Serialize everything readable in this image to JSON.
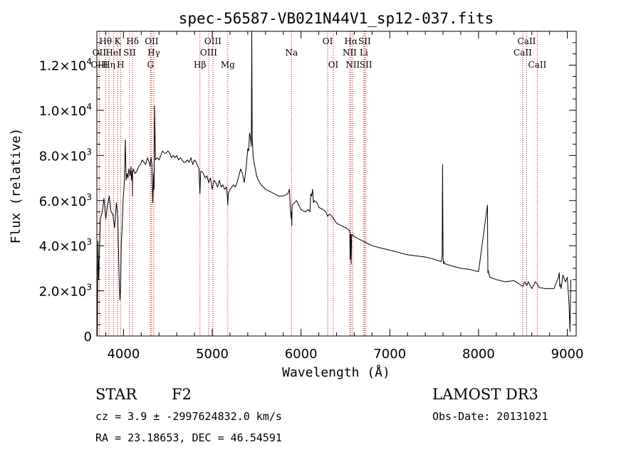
{
  "chart_data": {
    "type": "line",
    "title": "spec-56587-VB021N44V1_sp12-037.fits",
    "xlabel": "Wavelength (Å)",
    "ylabel": "Flux (relative)",
    "xlim": [
      3700,
      9100
    ],
    "ylim": [
      0,
      13500
    ],
    "x_ticks": [
      4000,
      5000,
      6000,
      7000,
      8000,
      9000
    ],
    "x_tick_labels": [
      "4000",
      "5000",
      "6000",
      "7000",
      "8000",
      "9000"
    ],
    "y_ticks": [
      0,
      2000,
      4000,
      6000,
      8000,
      10000,
      12000
    ],
    "y_tick_mantissa": [
      "0",
      "2.0×10",
      "4.0×10",
      "6.0×10",
      "8.0×10",
      "1.0×10",
      "1.2×10"
    ],
    "y_tick_exponent": [
      "",
      "3",
      "3",
      "3",
      "3",
      "4",
      "4"
    ],
    "grid": false,
    "series": [
      {
        "name": "flux",
        "x": [
          3705,
          3712,
          3720,
          3740,
          3760,
          3780,
          3800,
          3820,
          3840,
          3860,
          3880,
          3900,
          3920,
          3935,
          3950,
          3960,
          3968,
          3975,
          3985,
          3995,
          4010,
          4020,
          4030,
          4040,
          4050,
          4060,
          4075,
          4085,
          4090,
          4100,
          4101,
          4103,
          4110,
          4130,
          4150,
          4170,
          4190,
          4210,
          4230,
          4250,
          4270,
          4290,
          4300,
          4310,
          4320,
          4330,
          4340,
          4345,
          4350,
          4360,
          4380,
          4400,
          4420,
          4440,
          4460,
          4480,
          4500,
          4520,
          4540,
          4560,
          4580,
          4600,
          4620,
          4640,
          4660,
          4680,
          4700,
          4720,
          4740,
          4760,
          4780,
          4800,
          4820,
          4840,
          4850,
          4861,
          4870,
          4880,
          4900,
          4920,
          4940,
          4960,
          4980,
          5000,
          5020,
          5040,
          5060,
          5080,
          5100,
          5120,
          5140,
          5160,
          5170,
          5175,
          5180,
          5200,
          5220,
          5240,
          5260,
          5280,
          5300,
          5320,
          5340,
          5360,
          5380,
          5400,
          5410,
          5420,
          5430,
          5440,
          5445,
          5450,
          5455,
          5460,
          5470,
          5480,
          5490,
          5500,
          5520,
          5550,
          5600,
          5650,
          5700,
          5750,
          5800,
          5850,
          5870,
          5880,
          5890,
          5893,
          5896,
          5900,
          5950,
          6000,
          6050,
          6080,
          6100,
          6110,
          6120,
          6130,
          6140,
          6150,
          6180,
          6200,
          6250,
          6280,
          6300,
          6320,
          6350,
          6400,
          6450,
          6500,
          6540,
          6550,
          6555,
          6560,
          6565,
          6570,
          6600,
          6650,
          6700,
          6750,
          6800,
          6900,
          7000,
          7100,
          7200,
          7300,
          7400,
          7500,
          7580,
          7590,
          7595,
          7600,
          7605,
          7610,
          7620,
          7700,
          7800,
          7900,
          8000,
          8100,
          8105,
          8110,
          8115,
          8120,
          8130,
          8200,
          8300,
          8400,
          8500,
          8520,
          8545,
          8560,
          8600,
          8640,
          8662,
          8680,
          8750,
          8850,
          8900,
          8910,
          8915,
          8920,
          8930,
          8950,
          8980,
          9000,
          9010,
          9020,
          9030,
          9040
        ],
        "values": [
          0,
          4200,
          2500,
          5200,
          5500,
          6100,
          5200,
          5800,
          6200,
          5500,
          5400,
          4800,
          5900,
          5300,
          2600,
          1600,
          2200,
          4100,
          4800,
          6000,
          6800,
          8700,
          6900,
          7200,
          7000,
          7400,
          7100,
          7500,
          6900,
          7300,
          6200,
          7200,
          7400,
          7200,
          7300,
          7500,
          7600,
          7800,
          7700,
          7600,
          7900,
          7700,
          7500,
          7900,
          7600,
          5900,
          7200,
          6500,
          10200,
          7800,
          7900,
          7800,
          8000,
          8200,
          8100,
          8100,
          8200,
          8100,
          7900,
          8000,
          7900,
          8000,
          7800,
          7900,
          7800,
          7700,
          7700,
          7800,
          7700,
          7900,
          7600,
          7800,
          7700,
          7500,
          7400,
          6300,
          7300,
          7300,
          7200,
          7000,
          7100,
          6800,
          7000,
          6500,
          6900,
          6800,
          6600,
          6900,
          6600,
          6700,
          6500,
          6600,
          6200,
          5800,
          6300,
          6500,
          6600,
          6700,
          6600,
          6800,
          7100,
          7400,
          7200,
          6800,
          7400,
          8300,
          8200,
          9000,
          8800,
          8400,
          13500,
          8800,
          8500,
          8000,
          7700,
          7500,
          7300,
          7100,
          6900,
          6700,
          6500,
          6400,
          6300,
          6200,
          6200,
          6300,
          6500,
          5600,
          5200,
          5500,
          4900,
          5800,
          6000,
          5600,
          5500,
          5600,
          5500,
          6300,
          6200,
          6500,
          5900,
          6000,
          5900,
          5700,
          5600,
          5500,
          5300,
          5400,
          5300,
          5000,
          4900,
          4800,
          4700,
          4600,
          3400,
          4500,
          3200,
          4500,
          4400,
          4300,
          4200,
          4100,
          4000,
          3900,
          3800,
          3700,
          3600,
          3550,
          3500,
          3400,
          3300,
          3600,
          7600,
          3400,
          3200,
          3300,
          3200,
          3100,
          3000,
          2950,
          2850,
          5800,
          2800,
          2900,
          2800,
          2700,
          2600,
          2500,
          2400,
          2450,
          2200,
          2400,
          2250,
          2400,
          2100,
          2400,
          2300,
          2150,
          2100,
          2100,
          2600,
          2800,
          2200,
          2300,
          2100,
          2700,
          2400,
          2600,
          2000,
          1400,
          200,
          2500
        ]
      }
    ],
    "annotations": [
      {
        "label": "Hθ",
        "x": 3798,
        "row": 1
      },
      {
        "label": "OII",
        "x": 3727,
        "row": 2
      },
      {
        "label": "OIII",
        "x": 3727,
        "row": 3
      },
      {
        "label": "HeI",
        "x": 3889,
        "row": 2
      },
      {
        "label": "Hη",
        "x": 3836,
        "row": 3
      },
      {
        "label": "K",
        "x": 3934,
        "row": 1
      },
      {
        "label": "SII",
        "x": 4069,
        "row": 2
      },
      {
        "label": "H",
        "x": 3968,
        "row": 3
      },
      {
        "label": "Hδ",
        "x": 4102,
        "row": 1
      },
      {
        "label": "OII",
        "x": 4317,
        "row": 1
      },
      {
        "label": "Hγ",
        "x": 4341,
        "row": 2
      },
      {
        "label": "G",
        "x": 4304,
        "row": 3
      },
      {
        "label": "OIII",
        "x": 5007,
        "row": 1
      },
      {
        "label": "OIII",
        "x": 4959,
        "row": 2
      },
      {
        "label": "Hβ",
        "x": 4861,
        "row": 3
      },
      {
        "label": "Mg",
        "x": 5175,
        "row": 3
      },
      {
        "label": "Na",
        "x": 5893,
        "row": 2
      },
      {
        "label": "OI",
        "x": 6300,
        "row": 1
      },
      {
        "label": "OI",
        "x": 6364,
        "row": 3
      },
      {
        "label": "Hα",
        "x": 6563,
        "row": 1
      },
      {
        "label": "SII",
        "x": 6716,
        "row": 1
      },
      {
        "label": "NII",
        "x": 6548,
        "row": 2
      },
      {
        "label": "Li",
        "x": 6708,
        "row": 2
      },
      {
        "label": "NII",
        "x": 6583,
        "row": 3
      },
      {
        "label": "SII",
        "x": 6731,
        "row": 3
      },
      {
        "label": "CaII",
        "x": 8542,
        "row": 1
      },
      {
        "label": "CaII",
        "x": 8498,
        "row": 2
      },
      {
        "label": "CaII",
        "x": 8662,
        "row": 3
      }
    ],
    "line_markers": [
      3727,
      3798,
      3836,
      3889,
      3934,
      3968,
      4069,
      4102,
      4304,
      4317,
      4341,
      4861,
      4959,
      5007,
      5175,
      5893,
      6300,
      6364,
      6548,
      6563,
      6583,
      6708,
      6716,
      6731,
      8498,
      8542,
      8662
    ]
  },
  "info": {
    "object_class": "STAR",
    "subclass": "F2",
    "survey": "LAMOST DR3",
    "redshift_line": "cz = 3.9 ± -2997624832.0 km/s",
    "obs_date": "Obs-Date: 20131021",
    "coords": "RA =  23.18653, DEC =  46.54591"
  },
  "colors": {
    "spectrum": "#000000",
    "line_marker": "#cc0000",
    "axis": "#000000",
    "background": "#ffffff"
  }
}
